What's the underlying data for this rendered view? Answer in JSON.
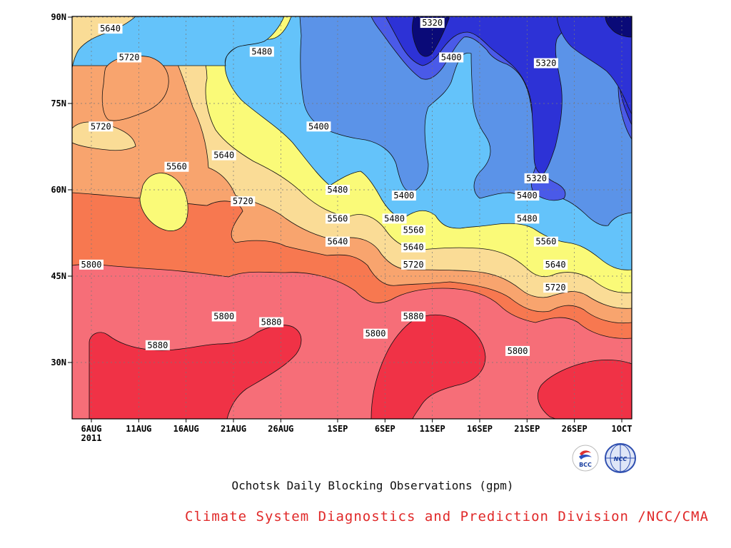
{
  "chart_data": {
    "type": "contour",
    "title": "Ochotsk Daily Blocking Observations (gpm)",
    "subtitle": "Climate System Diagnostics and Prediction Division /NCC/CMA",
    "x_ticks": [
      "6AUG",
      "11AUG",
      "16AUG",
      "21AUG",
      "26AUG",
      "1SEP",
      "6SEP",
      "11SEP",
      "16SEP",
      "21SEP",
      "26SEP",
      "1OCT"
    ],
    "x_year": "2011",
    "y_ticks": [
      "90N",
      "75N",
      "60N",
      "45N",
      "30N"
    ],
    "y_tick_values": [
      90,
      75,
      60,
      45,
      30
    ],
    "ylim": [
      20,
      90
    ],
    "x_range": [
      "2011-08-06",
      "2011-10-01"
    ],
    "grid": true,
    "levels": [
      5240,
      5320,
      5400,
      5480,
      5560,
      5640,
      5720,
      5800,
      5880
    ],
    "level_colors": [
      "#0a0a78",
      "#2d32d6",
      "#4a5ae8",
      "#5b93e8",
      "#64c3fa",
      "#fafa78",
      "#fadc96",
      "#f8a46e",
      "#f77850",
      "#f66e78",
      "#f03246"
    ],
    "contour_labels": [
      {
        "text": "5320",
        "date": "2011-09-11",
        "lat": 89
      },
      {
        "text": "5640",
        "date": "2011-08-08",
        "lat": 88
      },
      {
        "text": "5480",
        "date": "2011-08-24",
        "lat": 84
      },
      {
        "text": "5720",
        "date": "2011-08-10",
        "lat": 83
      },
      {
        "text": "5400",
        "date": "2011-09-13",
        "lat": 83
      },
      {
        "text": "5320",
        "date": "2011-09-23",
        "lat": 82
      },
      {
        "text": "5720",
        "date": "2011-08-07",
        "lat": 71
      },
      {
        "text": "5400",
        "date": "2011-08-30",
        "lat": 71
      },
      {
        "text": "5640",
        "date": "2011-08-20",
        "lat": 66
      },
      {
        "text": "5560",
        "date": "2011-08-15",
        "lat": 64
      },
      {
        "text": "5480",
        "date": "2011-09-01",
        "lat": 60
      },
      {
        "text": "5320",
        "date": "2011-09-22",
        "lat": 62
      },
      {
        "text": "5400",
        "date": "2011-09-08",
        "lat": 59
      },
      {
        "text": "5400",
        "date": "2011-09-21",
        "lat": 59
      },
      {
        "text": "5720",
        "date": "2011-08-22",
        "lat": 58
      },
      {
        "text": "5560",
        "date": "2011-09-01",
        "lat": 55
      },
      {
        "text": "5480",
        "date": "2011-09-07",
        "lat": 55
      },
      {
        "text": "5480",
        "date": "2011-09-21",
        "lat": 55
      },
      {
        "text": "5560",
        "date": "2011-09-09",
        "lat": 53
      },
      {
        "text": "5640",
        "date": "2011-09-01",
        "lat": 51
      },
      {
        "text": "5560",
        "date": "2011-09-23",
        "lat": 51
      },
      {
        "text": "5640",
        "date": "2011-09-09",
        "lat": 50
      },
      {
        "text": "5800",
        "date": "2011-08-06",
        "lat": 47
      },
      {
        "text": "5720",
        "date": "2011-09-09",
        "lat": 47
      },
      {
        "text": "5640",
        "date": "2011-09-24",
        "lat": 47
      },
      {
        "text": "5720",
        "date": "2011-09-24",
        "lat": 43
      },
      {
        "text": "5800",
        "date": "2011-08-20",
        "lat": 38
      },
      {
        "text": "5880",
        "date": "2011-08-25",
        "lat": 37
      },
      {
        "text": "5880",
        "date": "2011-09-09",
        "lat": 38
      },
      {
        "text": "5800",
        "date": "2011-09-05",
        "lat": 35
      },
      {
        "text": "5880",
        "date": "2011-08-13",
        "lat": 33
      },
      {
        "text": "5800",
        "date": "2011-09-20",
        "lat": 32
      }
    ]
  },
  "logos": {
    "left": {
      "text": "BCC",
      "color": "#1a3fa0"
    },
    "right": {
      "text": "NCC",
      "color": "#1a3fa0"
    }
  },
  "colors": {
    "title": "#111111",
    "subtitle": "#e02828",
    "frame": "#000000"
  }
}
